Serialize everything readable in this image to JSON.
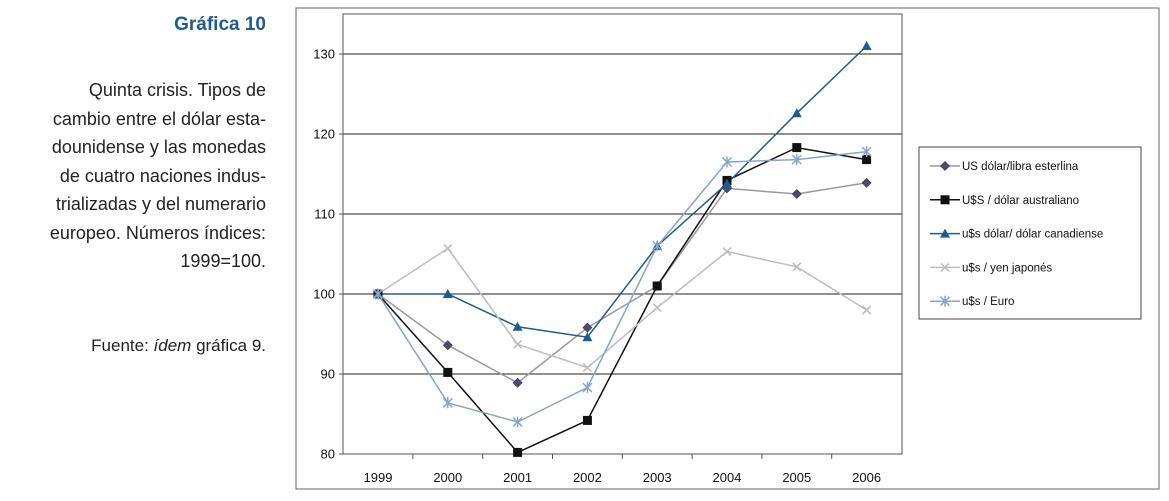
{
  "figure": {
    "title": "Gráfica 10",
    "caption": "Quinta crisis. Tipos de cambio entre el dólar esta-dounidense y las monedas de cuatro naciones indus-trializadas y del numerario europeo. Números índices: 1999=100.",
    "caption_lines": [
      "Quinta crisis. Tipos de",
      "cambio entre el dólar esta-",
      "dounidense y las monedas",
      "de cuatro naciones indus-",
      "trializadas y del numerario",
      "europeo. Números índices:",
      "1999=100."
    ],
    "source_prefix": "Fuente: ",
    "source_ref": "ídem",
    "source_suffix": " gráfica 9."
  },
  "chart_data": {
    "type": "line",
    "x": [
      "1999",
      "2000",
      "2001",
      "2002",
      "2003",
      "2004",
      "2005",
      "2006"
    ],
    "ylim": [
      80,
      135
    ],
    "yticks": [
      80,
      90,
      100,
      110,
      120,
      130
    ],
    "grid": true,
    "legend_position": "right",
    "series": [
      {
        "name": "US dólar/libra esterlina",
        "color": "#9a9a9a",
        "marker": "diamond",
        "marker_color": "#4a4a7a",
        "values": [
          100,
          93.6,
          88.9,
          95.8,
          101.0,
          113.2,
          112.5,
          113.9
        ]
      },
      {
        "name": "U$S /   dólar australiano",
        "color": "#111111",
        "marker": "square",
        "marker_color": "#111111",
        "values": [
          100,
          90.2,
          80.2,
          84.2,
          101.0,
          114.2,
          118.3,
          116.8
        ]
      },
      {
        "name": "u$s dólar/ dólar canadiense",
        "color": "#1f5b8f",
        "marker": "triangle",
        "marker_color": "#1f5b8f",
        "values": [
          100,
          100,
          95.9,
          94.6,
          106.0,
          113.8,
          122.6,
          131.0
        ]
      },
      {
        "name": "u$s / yen japonés",
        "color": "#bdbdbd",
        "marker": "x",
        "marker_color": "#bdbdbd",
        "values": [
          100,
          105.7,
          93.7,
          90.8,
          98.3,
          105.3,
          103.4,
          98.0
        ]
      },
      {
        "name": "u$s / Euro",
        "color": "#8aa4c8",
        "marker": "star",
        "marker_color": "#8aa4c8",
        "values": [
          100,
          86.4,
          84.0,
          88.3,
          106.0,
          116.5,
          116.8,
          117.8
        ]
      }
    ]
  }
}
